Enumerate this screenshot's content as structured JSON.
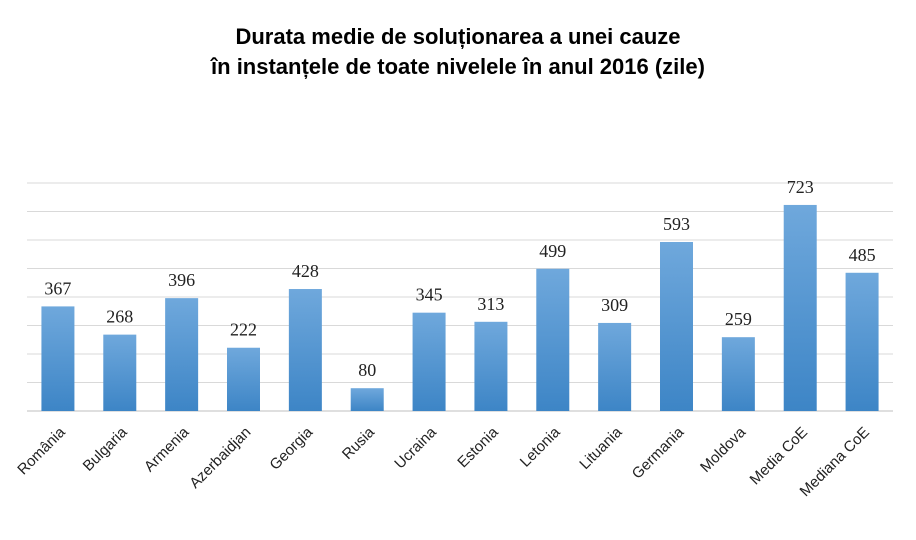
{
  "chart_data": {
    "type": "bar",
    "title_line1": "Durata medie de soluționarea a unei cauze",
    "title_line2": "în instanțele de toate nivelele în anul 2016 (zile)",
    "categories": [
      "România",
      "Bulgaria",
      "Armenia",
      "Azerbaidjan",
      "Georgia",
      "Rusia",
      "Ucraina",
      "Estonia",
      "Letonia",
      "Lituania",
      "Germania",
      "Moldova",
      "Media CoE",
      "Mediana CoE"
    ],
    "values": [
      367,
      268,
      396,
      222,
      428,
      80,
      345,
      313,
      499,
      309,
      593,
      259,
      723,
      485
    ],
    "ylim": [
      0,
      800
    ],
    "grid": true,
    "legend": "none",
    "colors": {
      "bar_top": "#6fa8dc",
      "bar_bottom": "#3d85c6",
      "grid": "#d9d9d9",
      "axis": "#bfbfbf"
    }
  }
}
